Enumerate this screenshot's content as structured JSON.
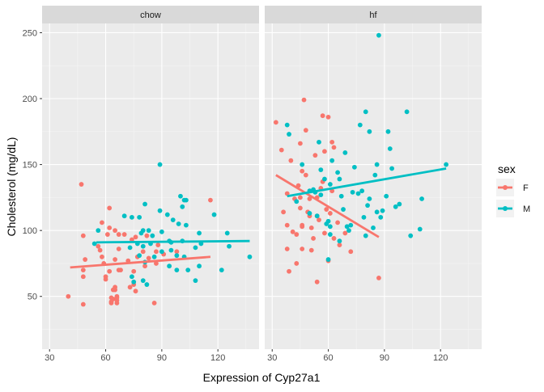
{
  "chart_data": {
    "type": "scatter",
    "facets": [
      "chow",
      "hf"
    ],
    "xlabel": "Expression of Cyp27a1",
    "ylabel": "Cholesterol (mg/dL)",
    "xlim": [
      26,
      142
    ],
    "ylim": [
      10,
      257
    ],
    "xticks": [
      30,
      60,
      90,
      120
    ],
    "yticks": [
      50,
      100,
      150,
      200,
      250
    ],
    "grid": true,
    "legend": {
      "title": "sex",
      "position": "right",
      "entries": [
        {
          "label": "F",
          "color": "#F8766D"
        },
        {
          "label": "M",
          "color": "#00BFC4"
        }
      ]
    },
    "series": [
      {
        "facet": "chow",
        "name": "F",
        "color": "#F8766D",
        "points": [
          [
            40,
            50
          ],
          [
            47,
            135
          ],
          [
            48,
            96
          ],
          [
            48,
            44
          ],
          [
            48,
            70
          ],
          [
            48,
            65
          ],
          [
            49,
            78
          ],
          [
            56,
            88
          ],
          [
            57,
            85
          ],
          [
            58,
            106
          ],
          [
            58,
            80
          ],
          [
            59,
            75
          ],
          [
            60,
            65
          ],
          [
            60,
            63
          ],
          [
            61,
            97
          ],
          [
            62,
            117
          ],
          [
            62,
            102
          ],
          [
            62,
            69
          ],
          [
            63,
            49
          ],
          [
            63,
            46
          ],
          [
            63,
            45
          ],
          [
            64,
            48
          ],
          [
            64,
            55
          ],
          [
            65,
            100
          ],
          [
            65,
            57
          ],
          [
            65,
            78
          ],
          [
            65,
            55
          ],
          [
            66,
            49
          ],
          [
            66,
            50
          ],
          [
            66,
            45
          ],
          [
            66,
            47
          ],
          [
            67,
            86
          ],
          [
            67,
            97
          ],
          [
            67,
            70
          ],
          [
            68,
            70
          ],
          [
            70,
            97
          ],
          [
            72,
            77
          ],
          [
            73,
            57
          ],
          [
            74,
            93
          ],
          [
            75,
            69
          ],
          [
            75,
            59
          ],
          [
            76,
            54
          ],
          [
            76,
            95
          ],
          [
            77,
            80
          ],
          [
            80,
            84
          ],
          [
            81,
            73
          ],
          [
            82,
            96
          ],
          [
            83,
            79
          ],
          [
            86,
            45
          ],
          [
            87,
            84
          ],
          [
            87,
            75
          ],
          [
            88,
            89
          ],
          [
            91,
            82
          ],
          [
            98,
            84
          ],
          [
            116,
            123
          ]
        ],
        "fit": [
          [
            41,
            72
          ],
          [
            116,
            80
          ]
        ]
      },
      {
        "facet": "chow",
        "name": "M",
        "color": "#00BFC4",
        "points": [
          [
            54,
            90
          ],
          [
            56,
            100
          ],
          [
            70,
            111
          ],
          [
            73,
            87
          ],
          [
            74,
            110
          ],
          [
            74,
            65
          ],
          [
            75,
            61
          ],
          [
            77,
            90
          ],
          [
            78,
            81
          ],
          [
            78,
            110
          ],
          [
            79,
            98
          ],
          [
            80,
            62
          ],
          [
            80,
            88
          ],
          [
            80,
            100
          ],
          [
            81,
            76
          ],
          [
            81,
            120
          ],
          [
            82,
            59
          ],
          [
            83,
            100
          ],
          [
            84,
            90
          ],
          [
            85,
            96
          ],
          [
            86,
            80
          ],
          [
            89,
            150
          ],
          [
            89,
            115
          ],
          [
            90,
            99
          ],
          [
            90,
            84
          ],
          [
            93,
            112
          ],
          [
            94,
            73
          ],
          [
            94,
            92
          ],
          [
            95,
            85
          ],
          [
            95,
            91
          ],
          [
            96,
            108
          ],
          [
            98,
            81
          ],
          [
            98,
            70
          ],
          [
            99,
            105
          ],
          [
            100,
            126
          ],
          [
            101,
            92
          ],
          [
            101,
            118
          ],
          [
            102,
            123
          ],
          [
            102,
            80
          ],
          [
            103,
            123
          ],
          [
            103,
            104
          ],
          [
            104,
            70
          ],
          [
            108,
            87
          ],
          [
            108,
            62
          ],
          [
            110,
            98
          ],
          [
            110,
            73
          ],
          [
            111,
            90
          ],
          [
            118,
            112
          ],
          [
            122,
            70
          ],
          [
            125,
            98
          ],
          [
            126,
            88
          ],
          [
            137,
            80
          ]
        ],
        "fit": [
          [
            55,
            91
          ],
          [
            137,
            92
          ]
        ]
      },
      {
        "facet": "hf",
        "name": "F",
        "color": "#F8766D",
        "points": [
          [
            32,
            182
          ],
          [
            35,
            161
          ],
          [
            36,
            114
          ],
          [
            38,
            128
          ],
          [
            38,
            104
          ],
          [
            38,
            86
          ],
          [
            39,
            69
          ],
          [
            40,
            153
          ],
          [
            41,
            99
          ],
          [
            42,
            124
          ],
          [
            43,
            97
          ],
          [
            43,
            75
          ],
          [
            44,
            134
          ],
          [
            45,
            166
          ],
          [
            45,
            125
          ],
          [
            45,
            117
          ],
          [
            46,
            104
          ],
          [
            46,
            103
          ],
          [
            46,
            86
          ],
          [
            46,
            145
          ],
          [
            47,
            199
          ],
          [
            48,
            176
          ],
          [
            48,
            142
          ],
          [
            49,
            114
          ],
          [
            50,
            124
          ],
          [
            50,
            111
          ],
          [
            51,
            102
          ],
          [
            51,
            85
          ],
          [
            52,
            94
          ],
          [
            53,
            157
          ],
          [
            54,
            125
          ],
          [
            54,
            111
          ],
          [
            54,
            61
          ],
          [
            55,
            108
          ],
          [
            56,
            132
          ],
          [
            57,
            187
          ],
          [
            57,
            137
          ],
          [
            58,
            160
          ],
          [
            58,
            98
          ],
          [
            59,
            116
          ],
          [
            60,
            186
          ],
          [
            60,
            77
          ],
          [
            61,
            113
          ],
          [
            62,
            167
          ],
          [
            62,
            130
          ],
          [
            63,
            163
          ],
          [
            63,
            94
          ],
          [
            65,
            106
          ],
          [
            66,
            89
          ],
          [
            69,
            98
          ],
          [
            72,
            84
          ],
          [
            87,
            64
          ]
        ],
        "fit": [
          [
            32,
            142
          ],
          [
            87,
            95
          ]
        ]
      },
      {
        "facet": "hf",
        "name": "M",
        "color": "#00BFC4",
        "points": [
          [
            38,
            180
          ],
          [
            39,
            173
          ],
          [
            43,
            122
          ],
          [
            46,
            150
          ],
          [
            50,
            113
          ],
          [
            50,
            130
          ],
          [
            52,
            131
          ],
          [
            53,
            129
          ],
          [
            54,
            111
          ],
          [
            55,
            167
          ],
          [
            56,
            146
          ],
          [
            56,
            127
          ],
          [
            58,
            139
          ],
          [
            59,
            105
          ],
          [
            60,
            78
          ],
          [
            60,
            107
          ],
          [
            61,
            103
          ],
          [
            61,
            97
          ],
          [
            61,
            135
          ],
          [
            62,
            153
          ],
          [
            65,
            144
          ],
          [
            66,
            92
          ],
          [
            66,
            139
          ],
          [
            67,
            126
          ],
          [
            68,
            116
          ],
          [
            69,
            159
          ],
          [
            70,
            103
          ],
          [
            71,
            100
          ],
          [
            72,
            104
          ],
          [
            73,
            129
          ],
          [
            74,
            148
          ],
          [
            76,
            128
          ],
          [
            77,
            180
          ],
          [
            78,
            130
          ],
          [
            79,
            110
          ],
          [
            80,
            96
          ],
          [
            80,
            190
          ],
          [
            81,
            119
          ],
          [
            82,
            124
          ],
          [
            82,
            175
          ],
          [
            84,
            102
          ],
          [
            85,
            142
          ],
          [
            86,
            114
          ],
          [
            86,
            150
          ],
          [
            87,
            248
          ],
          [
            88,
            110
          ],
          [
            89,
            115
          ],
          [
            91,
            126
          ],
          [
            92,
            175
          ],
          [
            93,
            162
          ],
          [
            94,
            147
          ],
          [
            96,
            118
          ],
          [
            98,
            120
          ],
          [
            102,
            190
          ],
          [
            104,
            96
          ],
          [
            109,
            101
          ],
          [
            110,
            124
          ],
          [
            123,
            150
          ]
        ],
        "fit": [
          [
            38,
            126
          ],
          [
            123,
            147
          ]
        ]
      }
    ]
  }
}
